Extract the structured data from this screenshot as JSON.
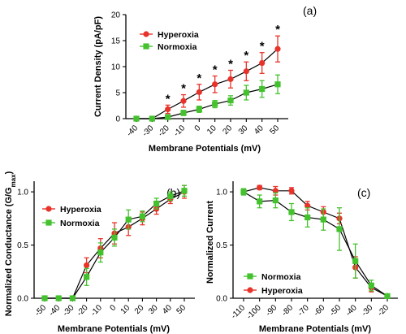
{
  "chart_data": [
    {
      "type": "line",
      "panel_label": "(a)",
      "xlabel": "Membrane Potentials (mV)",
      "ylabel": "Current Density (pA/pF)",
      "x": [
        -40,
        -30,
        -20,
        -10,
        0,
        10,
        20,
        30,
        40,
        50
      ],
      "ylim": [
        0,
        20
      ],
      "yticks": [
        0,
        5,
        10,
        15,
        20
      ],
      "legend_position": "top-left",
      "significance_marker": "*",
      "significant_x": [
        -20,
        -10,
        0,
        10,
        20,
        30,
        40,
        50
      ],
      "series": [
        {
          "name": "Hyperoxia",
          "color": "#e8332a",
          "marker": "circle",
          "values": [
            0,
            0,
            1.8,
            3.4,
            5.1,
            6.6,
            7.6,
            9.1,
            10.7,
            13.4
          ],
          "errors": [
            0,
            0,
            0.8,
            1.2,
            1.5,
            1.6,
            1.7,
            1.8,
            2.0,
            2.5
          ]
        },
        {
          "name": "Normoxia",
          "color": "#44c22e",
          "marker": "square",
          "values": [
            0,
            0,
            0.3,
            1.1,
            1.8,
            2.8,
            3.5,
            5.0,
            5.7,
            6.6
          ],
          "errors": [
            0,
            0,
            0.3,
            0.5,
            0.6,
            0.7,
            0.9,
            1.4,
            1.6,
            1.8
          ]
        }
      ]
    },
    {
      "type": "line",
      "panel_label": "(b)",
      "xlabel": "Membrane Potentials (mV)",
      "ylabel": "Normalized Conductance (G/G",
      "ylabel_sub": "max",
      "ylabel_close": ")",
      "x": [
        -50,
        -40,
        -30,
        -20,
        -10,
        0,
        10,
        20,
        30,
        40,
        50
      ],
      "ylim": [
        0,
        1.1
      ],
      "yticks": [
        0.0,
        0.5,
        1.0
      ],
      "ytick_labels": [
        "0.0",
        "0.5",
        "1.0"
      ],
      "legend_position": "top-left",
      "series": [
        {
          "name": "Hyperoxia",
          "color": "#e8332a",
          "marker": "circle",
          "values": [
            0,
            0,
            0,
            0.31,
            0.47,
            0.61,
            0.67,
            0.75,
            0.84,
            0.93,
            1.0
          ],
          "errors": [
            0,
            0,
            0,
            0.07,
            0.09,
            0.1,
            0.08,
            0.06,
            0.05,
            0.04,
            0.06
          ]
        },
        {
          "name": "Normoxia",
          "color": "#44c22e",
          "marker": "square",
          "values": [
            0,
            0,
            0,
            0.2,
            0.43,
            0.57,
            0.74,
            0.77,
            0.89,
            0.96,
            1.01
          ],
          "errors": [
            0,
            0,
            0,
            0.08,
            0.09,
            0.08,
            0.09,
            0.05,
            0.05,
            0.04,
            0.05
          ]
        }
      ]
    },
    {
      "type": "line",
      "panel_label": "(c)",
      "xlabel": "Membrane Potentials (mV)",
      "ylabel": "Normalized Current",
      "x": [
        -110,
        -100,
        -90,
        -80,
        -70,
        -60,
        -50,
        -40,
        -30,
        -20
      ],
      "ylim": [
        0,
        1.1
      ],
      "yticks": [
        0.0,
        0.5,
        1.0
      ],
      "ytick_labels": [
        "0.0",
        "0.5",
        "1.0"
      ],
      "legend_position": "bottom-left",
      "series": [
        {
          "name": "Hyperoxia",
          "color": "#e8332a",
          "marker": "circle",
          "values": [
            1.0,
            1.04,
            1.01,
            1.01,
            0.87,
            0.81,
            0.75,
            0.29,
            0.1,
            0.02
          ],
          "errors": [
            0.02,
            0.02,
            0.04,
            0.03,
            0.04,
            0.05,
            0.05,
            0.1,
            0.04,
            0.02
          ]
        },
        {
          "name": "Normoxia",
          "color": "#44c22e",
          "marker": "square",
          "values": [
            1.0,
            0.91,
            0.92,
            0.81,
            0.76,
            0.74,
            0.65,
            0.35,
            0.12,
            0.02
          ],
          "errors": [
            0.03,
            0.06,
            0.07,
            0.08,
            0.09,
            0.1,
            0.2,
            0.16,
            0.05,
            0.02
          ]
        }
      ]
    }
  ]
}
